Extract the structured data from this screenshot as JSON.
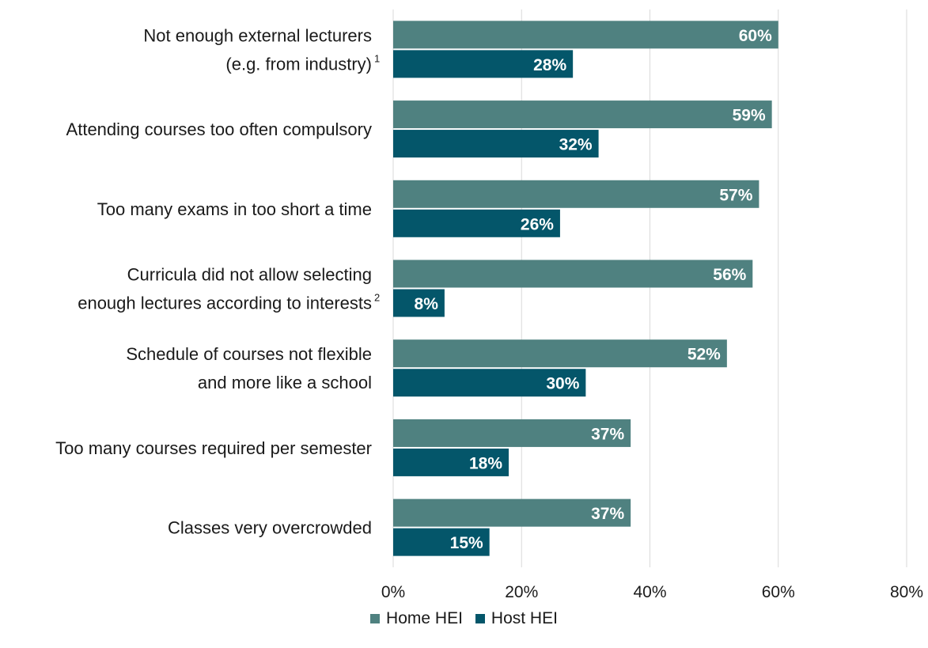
{
  "chart_data": {
    "type": "bar",
    "orientation": "horizontal",
    "categories": [
      {
        "lines": [
          "Not enough external lecturers",
          "(e.g. from industry)"
        ],
        "note": "1"
      },
      {
        "lines": [
          "Attending courses too often compulsory"
        ],
        "note": ""
      },
      {
        "lines": [
          "Too many exams in too short a time"
        ],
        "note": ""
      },
      {
        "lines": [
          "Curricula did not allow selecting",
          "enough lectures according to interests"
        ],
        "note": "2"
      },
      {
        "lines": [
          "Schedule of courses not flexible",
          "and more like a school"
        ],
        "note": ""
      },
      {
        "lines": [
          "Too many courses required per semester"
        ],
        "note": ""
      },
      {
        "lines": [
          "Classes very overcrowded"
        ],
        "note": ""
      }
    ],
    "series": [
      {
        "name": "Home HEI",
        "color": "#4f8180",
        "values": [
          60,
          59,
          57,
          56,
          52,
          37,
          37
        ],
        "labels": [
          "60%",
          "59%",
          "57%",
          "56%",
          "52%",
          "37%",
          "37%"
        ]
      },
      {
        "name": "Host HEI",
        "color": "#04566a",
        "values": [
          28,
          32,
          26,
          8,
          30,
          18,
          15
        ],
        "labels": [
          "28%",
          "32%",
          "26%",
          "8%",
          "30%",
          "18%",
          "15%"
        ]
      }
    ],
    "xlim": [
      0,
      80
    ],
    "xticks": [
      0,
      20,
      40,
      60,
      80
    ],
    "xtick_labels": [
      "0%",
      "20%",
      "40%",
      "60%",
      "80%"
    ],
    "grid": true,
    "legend_position": "bottom"
  }
}
